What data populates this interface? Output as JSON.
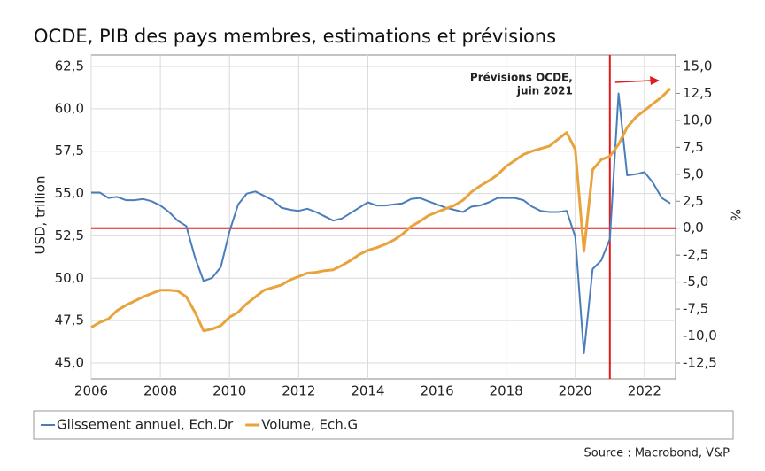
{
  "chart_data": {
    "type": "line",
    "title": "OCDE, PIB des pays membres, estimations et prévisions",
    "y_label": "USD, trillion",
    "y2_label": "%",
    "source": "Source : Macrobond, V&P",
    "annotation": [
      "Prévisions OCDE,",
      "juin 2021"
    ],
    "annotation_color": "#e31a1c",
    "vline": 2021,
    "hline_y2": 0,
    "xlim": [
      2006,
      2022.9
    ],
    "xticks": [
      2006,
      2008,
      2010,
      2012,
      2014,
      2016,
      2018,
      2020,
      2022
    ],
    "ylim": [
      45,
      62.5
    ],
    "yticks": [
      {
        "value": 45,
        "label": "45,0"
      },
      {
        "value": 47.5,
        "label": "47,5"
      },
      {
        "value": 50,
        "label": "50,0"
      },
      {
        "value": 52.5,
        "label": "52,5"
      },
      {
        "value": 55,
        "label": "55,0"
      },
      {
        "value": 57.5,
        "label": "57,5"
      },
      {
        "value": 60,
        "label": "60,0"
      },
      {
        "value": 62.5,
        "label": "62,5"
      }
    ],
    "y2lim": [
      -12.5,
      15
    ],
    "y2ticks": [
      {
        "value": -12.5,
        "label": "-12,5"
      },
      {
        "value": -10,
        "label": "-10,0"
      },
      {
        "value": -7.5,
        "label": "-7,5"
      },
      {
        "value": -5,
        "label": "-5,0"
      },
      {
        "value": -2.5,
        "label": "-2,5"
      },
      {
        "value": 0,
        "label": "0,0"
      },
      {
        "value": 2.5,
        "label": "2,5"
      },
      {
        "value": 5,
        "label": "5,0"
      },
      {
        "value": 7.5,
        "label": "7,5"
      },
      {
        "value": 10,
        "label": "10,0"
      },
      {
        "value": 12.5,
        "label": "12,5"
      },
      {
        "value": 15,
        "label": "15,0"
      }
    ],
    "grid": true,
    "legend": "bottom",
    "x": [
      2006,
      2006.25,
      2006.5,
      2006.75,
      2007,
      2007.25,
      2007.5,
      2007.75,
      2008,
      2008.25,
      2008.5,
      2008.75,
      2009,
      2009.25,
      2009.5,
      2009.75,
      2010,
      2010.25,
      2010.5,
      2010.75,
      2011,
      2011.25,
      2011.5,
      2011.75,
      2012,
      2012.25,
      2012.5,
      2012.75,
      2013,
      2013.25,
      2013.5,
      2013.75,
      2014,
      2014.25,
      2014.5,
      2014.75,
      2015,
      2015.25,
      2015.5,
      2015.75,
      2016,
      2016.25,
      2016.5,
      2016.75,
      2017,
      2017.25,
      2017.5,
      2017.75,
      2018,
      2018.25,
      2018.5,
      2018.75,
      2019,
      2019.25,
      2019.5,
      2019.75,
      2020,
      2020.25,
      2020.5,
      2020.75,
      2021,
      2021.25,
      2021.5,
      2021.75,
      2022,
      2022.25,
      2022.5,
      2022.75
    ],
    "series": [
      {
        "name": "Glissement annuel, Ech.Dr",
        "color": "#4a7ebb",
        "axis": "y2",
        "values": [
          3.3,
          3.3,
          2.8,
          2.9,
          2.6,
          2.6,
          2.7,
          2.5,
          2.1,
          1.5,
          0.7,
          0.2,
          -2.7,
          -4.9,
          -4.6,
          -3.6,
          -0.3,
          2.2,
          3.2,
          3.4,
          3.0,
          2.6,
          1.9,
          1.7,
          1.6,
          1.8,
          1.5,
          1.1,
          0.7,
          0.9,
          1.4,
          1.9,
          2.4,
          2.1,
          2.1,
          2.2,
          2.3,
          2.7,
          2.8,
          2.5,
          2.2,
          1.9,
          1.7,
          1.5,
          2.0,
          2.1,
          2.4,
          2.8,
          2.8,
          2.8,
          2.6,
          2.0,
          1.6,
          1.5,
          1.5,
          1.6,
          -0.8,
          -11.6,
          -3.8,
          -3.0,
          -1.0,
          12.5,
          4.9,
          5.0,
          5.2,
          4.2,
          2.8,
          2.3
        ]
      },
      {
        "name": "Volume, Ech.G",
        "color": "#e8a33d",
        "values": [
          47.1,
          47.4,
          47.6,
          48.1,
          48.4,
          48.65,
          48.9,
          49.1,
          49.3,
          49.3,
          49.25,
          48.9,
          48.0,
          46.9,
          47.0,
          47.2,
          47.7,
          48.0,
          48.5,
          48.9,
          49.3,
          49.45,
          49.6,
          49.9,
          50.1,
          50.3,
          50.35,
          50.45,
          50.5,
          50.75,
          51.05,
          51.4,
          51.65,
          51.8,
          52.0,
          52.25,
          52.6,
          53.05,
          53.35,
          53.7,
          53.9,
          54.1,
          54.3,
          54.6,
          55.1,
          55.45,
          55.75,
          56.1,
          56.6,
          56.95,
          57.3,
          57.5,
          57.65,
          57.8,
          58.2,
          58.6,
          57.6,
          51.6,
          56.4,
          57.0,
          57.2,
          57.9,
          58.9,
          59.5,
          59.9,
          60.3,
          60.7,
          61.2
        ]
      }
    ]
  }
}
